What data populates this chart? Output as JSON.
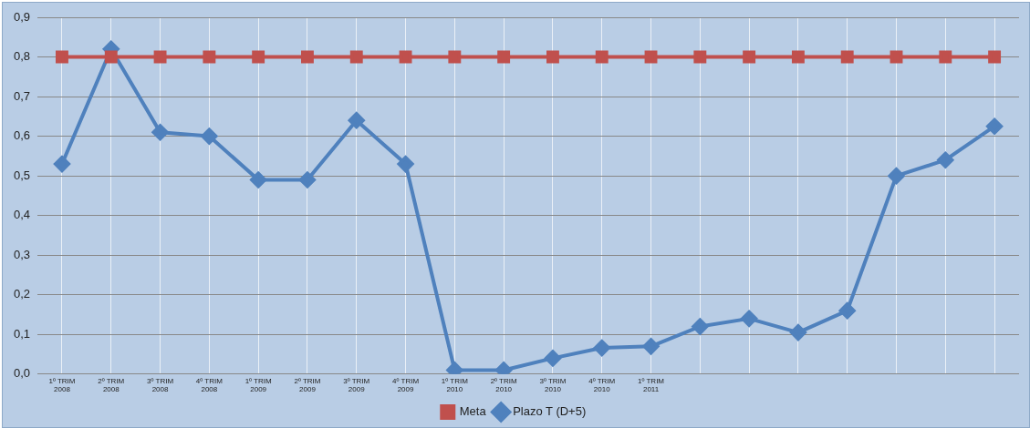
{
  "chart_data": {
    "type": "line",
    "categories": [
      "1º TRIM\n2008",
      "2º TRIM\n2008",
      "3º TRIM\n2008",
      "4º TRIM\n2008",
      "1º TRIM\n2009",
      "2º TRIM\n2009",
      "3º TRIM\n2009",
      "4º TRIM\n2009",
      "1º TRIM\n2010",
      "2º TRIM\n2010",
      "3º TRIM\n2010",
      "4º TRIM\n2010",
      "1º TRIM\n2011",
      null,
      null,
      null,
      null,
      null,
      null,
      null
    ],
    "series": [
      {
        "name": "Plazo T (D+5)",
        "color": "#4f81bd",
        "marker": "diamond",
        "values": [
          0.53,
          0.82,
          0.61,
          0.6,
          0.49,
          0.49,
          0.64,
          0.53,
          0.01,
          0.01,
          0.04,
          0.066,
          0.07,
          0.12,
          0.14,
          0.105,
          0.16,
          0.5,
          0.54,
          0.625
        ]
      },
      {
        "name": "Meta",
        "color": "#c0504d",
        "marker": "square",
        "values": [
          0.8,
          0.8,
          0.8,
          0.8,
          0.8,
          0.8,
          0.8,
          0.8,
          0.8,
          0.8,
          0.8,
          0.8,
          0.8,
          0.8,
          0.8,
          0.8,
          0.8,
          0.8,
          0.8,
          0.8
        ]
      }
    ],
    "ylim": [
      0,
      0.9
    ],
    "yticks": [
      {
        "value": 0,
        "label": "0,0"
      },
      {
        "value": 0.1,
        "label": "0,1"
      },
      {
        "value": 0.2,
        "label": "0,2"
      },
      {
        "value": 0.3,
        "label": "0,3"
      },
      {
        "value": 0.4,
        "label": "0,4"
      },
      {
        "value": 0.5,
        "label": "0,5"
      },
      {
        "value": 0.6,
        "label": "0,6"
      },
      {
        "value": 0.7,
        "label": "0,7"
      },
      {
        "value": 0.8,
        "label": "0,8"
      },
      {
        "value": 0.9,
        "label": "0,9"
      }
    ],
    "grid": true,
    "legend": "bottom",
    "line_style": "solid"
  }
}
